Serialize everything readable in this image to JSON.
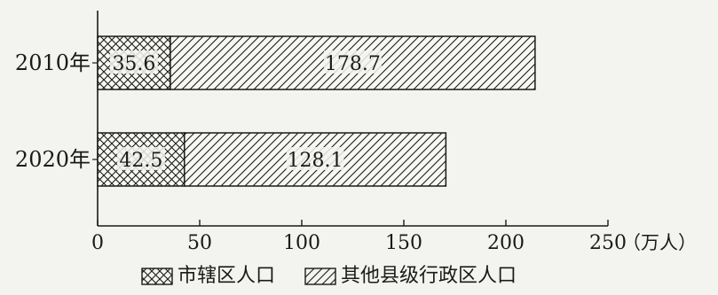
{
  "chart_data": {
    "type": "bar",
    "orientation": "horizontal",
    "stacked": true,
    "categories": [
      "2010年",
      "2020年"
    ],
    "series": [
      {
        "name": "市辖区人口",
        "values": [
          35.6,
          42.5
        ],
        "pattern": "crosshatch"
      },
      {
        "name": "其他县级行政区人口",
        "values": [
          178.7,
          128.1
        ],
        "pattern": "diagonal"
      }
    ],
    "xlim": [
      0,
      250
    ],
    "xticks": [
      "0",
      "50",
      "100",
      "150",
      "200",
      "250"
    ],
    "unit_label": "（万人）",
    "legend_position": "bottom",
    "grid": false,
    "colors": {
      "ink": "#1a1a1a",
      "background": "#f3f3ef"
    }
  }
}
